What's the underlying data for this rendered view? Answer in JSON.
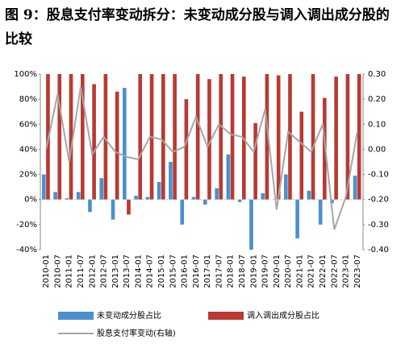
{
  "chart_data": {
    "type": "bar",
    "title": "图 9：股息支付率变动拆分：未变动成分股与调入调出成分股的比较",
    "categories": [
      "2010-01",
      "2010-07",
      "2011-01",
      "2011-07",
      "2012-01",
      "2012-07",
      "2013-01",
      "2013-07",
      "2014-01",
      "2014-07",
      "2015-01",
      "2015-07",
      "2016-01",
      "2016-07",
      "2017-01",
      "2017-07",
      "2018-01",
      "2018-07",
      "2019-01",
      "2019-07",
      "2020-01",
      "2020-07",
      "2021-01",
      "2021-07",
      "2022-01",
      "2022-07",
      "2023-01",
      "2023-07"
    ],
    "series": [
      {
        "name": "未变动成分股占比",
        "color": "#4a90d0",
        "values": [
          20,
          6,
          1,
          6,
          -10,
          17,
          -16,
          89,
          3,
          2,
          14,
          30,
          -20,
          2,
          -4,
          9,
          36,
          -2,
          -40,
          5,
          0,
          20,
          -31,
          7,
          -20,
          -3,
          0,
          19
        ]
      },
      {
        "name": "调入调出成分股占比",
        "color": "#b83a32",
        "values": [
          100,
          100,
          100,
          100,
          92,
          100,
          86,
          -12,
          100,
          100,
          100,
          100,
          80,
          100,
          96,
          100,
          100,
          98,
          61,
          100,
          99,
          100,
          70,
          100,
          81,
          98,
          100,
          100
        ]
      },
      {
        "name": "股息支付率变动(右轴)",
        "color": "#a6a6a6",
        "axis": "y2",
        "type": "line",
        "values": [
          0.0,
          0.22,
          -0.05,
          0.25,
          -0.02,
          0.05,
          -0.01,
          -0.03,
          -0.04,
          0.05,
          0.04,
          -0.01,
          0.01,
          0.13,
          0.01,
          0.1,
          0.06,
          0.05,
          -0.01,
          0.16,
          -0.24,
          0.07,
          0.03,
          -0.01,
          0.1,
          -0.32,
          -0.19,
          0.07
        ]
      }
    ],
    "ylim": [
      -40,
      100
    ],
    "yticks": [
      {
        "value": -40,
        "label": "-40%"
      },
      {
        "value": -20,
        "label": "-20%"
      },
      {
        "value": 0,
        "label": "0%"
      },
      {
        "value": 20,
        "label": "20%"
      },
      {
        "value": 40,
        "label": "40%"
      },
      {
        "value": 60,
        "label": "60%"
      },
      {
        "value": 80,
        "label": "80%"
      },
      {
        "value": 100,
        "label": "100%"
      }
    ],
    "y2lim": [
      -0.4,
      0.3
    ],
    "y2ticks": [
      {
        "value": -0.4,
        "label": "-0.40"
      },
      {
        "value": -0.3,
        "label": "-0.30"
      },
      {
        "value": -0.2,
        "label": "-0.20"
      },
      {
        "value": -0.1,
        "label": "-0.10"
      },
      {
        "value": 0,
        "label": "0.00"
      },
      {
        "value": 0.1,
        "label": "0.10"
      },
      {
        "value": 0.2,
        "label": "0.20"
      },
      {
        "value": 0.3,
        "label": "0.30"
      }
    ],
    "grid": false
  }
}
